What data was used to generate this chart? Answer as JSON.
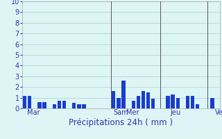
{
  "values": [
    1.2,
    1.2,
    0.0,
    0.6,
    0.6,
    0.0,
    0.4,
    0.7,
    0.7,
    0.0,
    0.5,
    0.4,
    0.4,
    0.0,
    0.0,
    0.0,
    0.0,
    0.0,
    1.6,
    1.0,
    2.6,
    0.0,
    0.7,
    1.2,
    1.6,
    1.5,
    0.9,
    0.0,
    0.0,
    1.2,
    1.3,
    1.0,
    0.0,
    1.2,
    1.2,
    0.4,
    0.0,
    0.0,
    1.0,
    0.0
  ],
  "bar_color": "#1a3dcc",
  "background_color": "#ddf5f5",
  "grid_color": "#aacccc",
  "axis_label_color": "#3333aa",
  "tick_color": "#3333aa",
  "xlabel": "Précipitations 24h ( mm )",
  "ylim": [
    0,
    10
  ],
  "yticks": [
    0,
    1,
    2,
    3,
    4,
    5,
    6,
    7,
    8,
    9,
    10
  ],
  "day_labels": [
    "Mar",
    "Sam",
    "Mer",
    "Jeu",
    "Ven"
  ],
  "day_positions": [
    0.5,
    18.0,
    20.5,
    29.5,
    38.5
  ],
  "vline_positions": [
    17.5,
    27.5,
    37.0
  ],
  "xlabel_fontsize": 8.5,
  "tick_fontsize": 7.0,
  "bar_width": 0.75
}
